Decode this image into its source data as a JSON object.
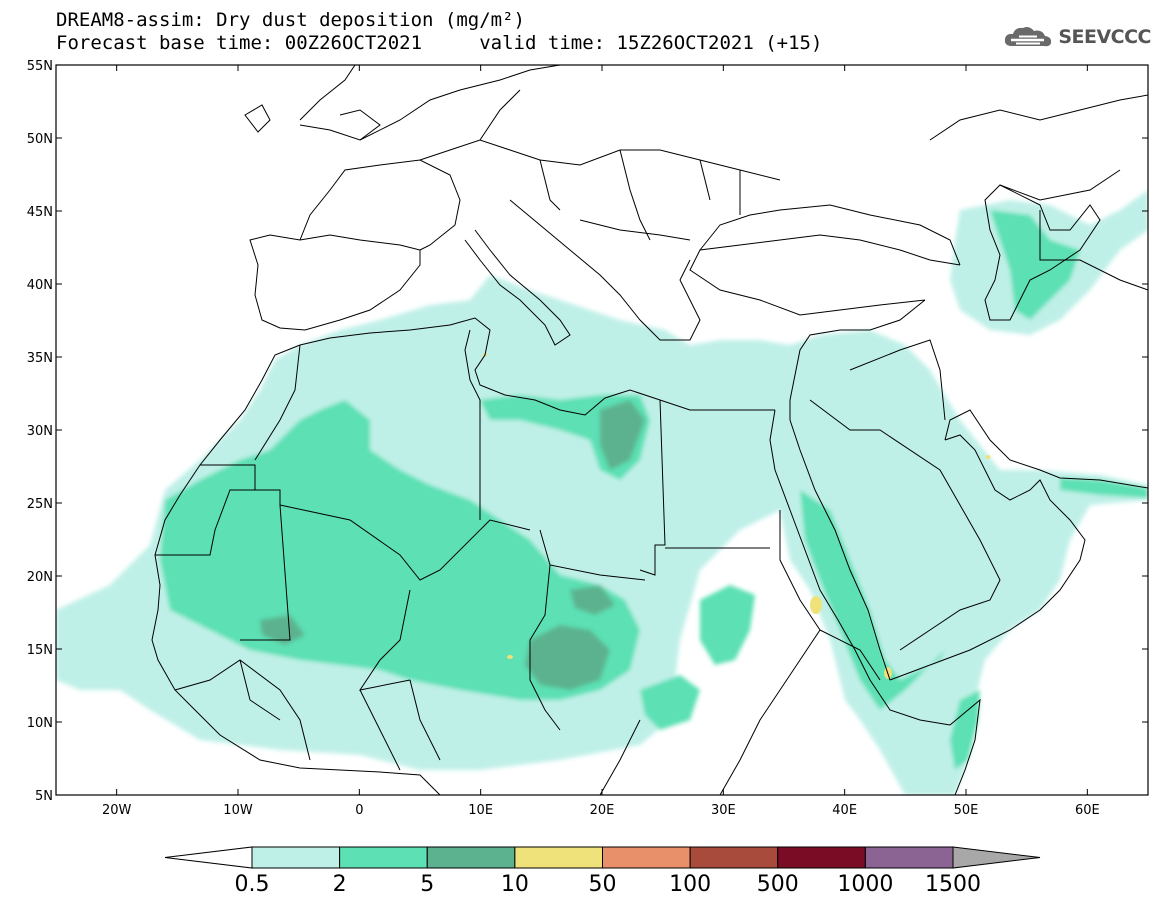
{
  "header": {
    "title_line1": "DREAM8-assim: Dry dust deposition (mg/m²)",
    "title_line2": "Forecast base time: 00Z26OCT2021     valid time: 15Z26OCT2021 (+15)",
    "logo_text": "SEEVCCC"
  },
  "map": {
    "lon_range": [
      -25,
      65
    ],
    "lat_range": [
      5,
      55
    ],
    "lat_labels": [
      "5N",
      "10N",
      "15N",
      "20N",
      "25N",
      "30N",
      "35N",
      "40N",
      "45N",
      "50N",
      "55N"
    ],
    "lon_labels": [
      "20W",
      "10W",
      "0",
      "10E",
      "20E",
      "30E",
      "40E",
      "50E",
      "60E"
    ]
  },
  "colorbar": {
    "labels": [
      "0.5",
      "2",
      "5",
      "10",
      "50",
      "100",
      "500",
      "1000",
      "1500"
    ],
    "colors": [
      "#ffffff",
      "#bff0e8",
      "#5ce0b4",
      "#5cb28e",
      "#f0e27a",
      "#e8906a",
      "#a84a3c",
      "#7a0c26",
      "#8c6494",
      "#a8a8a8"
    ]
  }
}
